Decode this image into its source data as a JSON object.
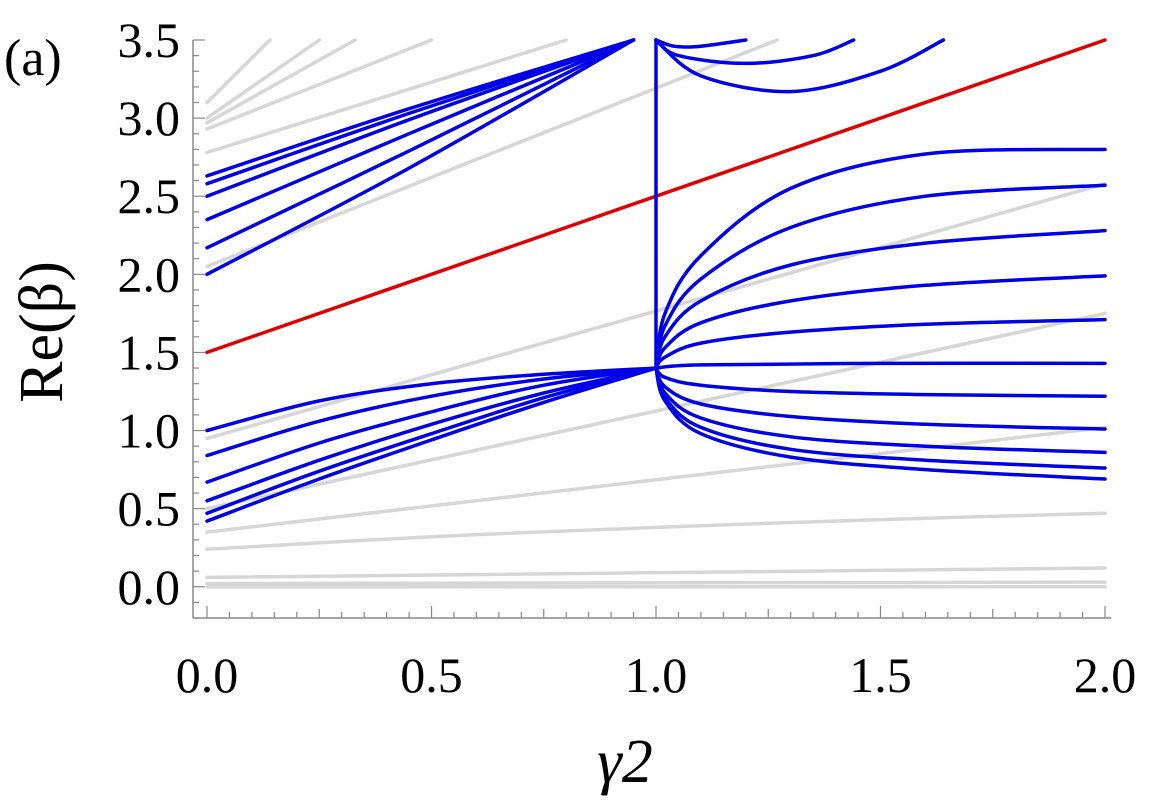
{
  "panel_label": "(a)",
  "chart_data": {
    "type": "line",
    "title": "",
    "xlabel": "γ2",
    "ylabel": "Re(β)",
    "xlim": [
      0.0,
      2.0
    ],
    "ylim": [
      -0.2,
      3.5
    ],
    "xticks": [
      "0.0",
      "0.5",
      "1.0",
      "1.5",
      "2.0"
    ],
    "xtick_values": [
      0.0,
      0.5,
      1.0,
      1.5,
      2.0
    ],
    "yticks": [
      "0.0",
      "0.5",
      "1.0",
      "1.5",
      "2.0",
      "2.5",
      "3.0",
      "3.5"
    ],
    "ytick_values": [
      0.0,
      0.5,
      1.0,
      1.5,
      2.0,
      2.5,
      3.0,
      3.5
    ],
    "grid": false,
    "legend": "none",
    "colors": {
      "gray": "#d6d6d6",
      "blue": "#0000e6",
      "red": "#dd0000"
    },
    "series": [
      {
        "color": "gray",
        "x": [
          0.0,
          2.0
        ],
        "y": [
          0.0,
          0.0
        ]
      },
      {
        "color": "gray",
        "x": [
          0.0,
          2.0
        ],
        "y": [
          0.02,
          0.03
        ]
      },
      {
        "color": "gray",
        "x": [
          0.0,
          2.0
        ],
        "y": [
          0.06,
          0.12
        ]
      },
      {
        "color": "gray",
        "x": [
          0.0,
          0.5,
          1.0,
          1.5,
          2.0
        ],
        "y": [
          0.24,
          0.32,
          0.38,
          0.43,
          0.47
        ]
      },
      {
        "color": "gray",
        "x": [
          0.0,
          2.0
        ],
        "y": [
          0.35,
          1.02
        ]
      },
      {
        "color": "gray",
        "x": [
          0.0,
          2.0
        ],
        "y": [
          0.5,
          1.75
        ]
      },
      {
        "color": "gray",
        "x": [
          0.0,
          2.0
        ],
        "y": [
          0.95,
          2.58
        ]
      },
      {
        "color": "gray",
        "x": [
          0.0,
          1.27
        ],
        "y": [
          2.05,
          3.5
        ]
      },
      {
        "color": "gray",
        "x": [
          0.0,
          0.8
        ],
        "y": [
          2.78,
          3.5
        ]
      },
      {
        "color": "gray",
        "x": [
          0.0,
          0.5
        ],
        "y": [
          2.93,
          3.5
        ]
      },
      {
        "color": "gray",
        "x": [
          0.0,
          0.33
        ],
        "y": [
          2.97,
          3.5
        ]
      },
      {
        "color": "gray",
        "x": [
          0.0,
          0.25
        ],
        "y": [
          3.0,
          3.5
        ]
      },
      {
        "color": "gray",
        "x": [
          0.0,
          0.14
        ],
        "y": [
          3.1,
          3.5
        ]
      },
      {
        "color": "red",
        "x": [
          0.0,
          2.0
        ],
        "y": [
          1.5,
          3.5
        ]
      },
      {
        "color": "blue",
        "x": [
          0.0,
          0.25,
          0.5,
          0.75,
          1.0
        ],
        "y": [
          1.0,
          1.19,
          1.3,
          1.36,
          1.4
        ]
      },
      {
        "color": "blue",
        "x": [
          0.0,
          0.25,
          0.5,
          0.75,
          1.0
        ],
        "y": [
          0.84,
          1.06,
          1.22,
          1.33,
          1.4
        ]
      },
      {
        "color": "blue",
        "x": [
          0.0,
          0.25,
          0.5,
          0.75,
          1.0
        ],
        "y": [
          0.67,
          0.92,
          1.12,
          1.29,
          1.4
        ]
      },
      {
        "color": "blue",
        "x": [
          0.0,
          0.25,
          0.5,
          0.75,
          1.0
        ],
        "y": [
          0.55,
          0.81,
          1.04,
          1.24,
          1.4
        ]
      },
      {
        "color": "blue",
        "x": [
          0.0,
          0.25,
          0.5,
          0.75,
          1.0
        ],
        "y": [
          0.47,
          0.74,
          0.98,
          1.21,
          1.4
        ]
      },
      {
        "color": "blue",
        "x": [
          0.0,
          0.25,
          0.5,
          0.75,
          1.0
        ],
        "y": [
          0.42,
          0.69,
          0.94,
          1.18,
          1.4
        ]
      },
      {
        "color": "blue",
        "x": [
          0.0,
          0.45,
          0.95
        ],
        "y": [
          2.63,
          3.06,
          3.5
        ]
      },
      {
        "color": "blue",
        "x": [
          0.0,
          0.45,
          0.95
        ],
        "y": [
          2.58,
          3.03,
          3.5
        ]
      },
      {
        "color": "blue",
        "x": [
          0.0,
          0.45,
          0.95
        ],
        "y": [
          2.5,
          2.99,
          3.5
        ]
      },
      {
        "color": "blue",
        "x": [
          0.0,
          0.45,
          0.95
        ],
        "y": [
          2.35,
          2.9,
          3.5
        ]
      },
      {
        "color": "blue",
        "x": [
          0.0,
          0.45,
          0.95
        ],
        "y": [
          2.17,
          2.79,
          3.5
        ]
      },
      {
        "color": "blue",
        "x": [
          0.0,
          0.45,
          0.95
        ],
        "y": [
          2.0,
          2.68,
          3.5
        ]
      },
      {
        "color": "blue",
        "x": [
          1.0,
          1.0
        ],
        "y": [
          1.4,
          3.5
        ]
      },
      {
        "color": "blue",
        "x": [
          1.0,
          1.02,
          1.1,
          1.3,
          1.6,
          2.0
        ],
        "y": [
          1.4,
          1.75,
          2.12,
          2.55,
          2.77,
          2.8
        ]
      },
      {
        "color": "blue",
        "x": [
          1.0,
          1.02,
          1.1,
          1.3,
          1.6,
          2.0
        ],
        "y": [
          1.4,
          1.67,
          1.97,
          2.3,
          2.5,
          2.57
        ]
      },
      {
        "color": "blue",
        "x": [
          1.0,
          1.02,
          1.1,
          1.3,
          1.6,
          2.0
        ],
        "y": [
          1.4,
          1.6,
          1.83,
          2.06,
          2.2,
          2.28
        ]
      },
      {
        "color": "blue",
        "x": [
          1.0,
          1.02,
          1.1,
          1.3,
          1.6,
          2.0
        ],
        "y": [
          1.4,
          1.53,
          1.69,
          1.83,
          1.93,
          1.99
        ]
      },
      {
        "color": "blue",
        "x": [
          1.0,
          1.02,
          1.1,
          1.3,
          1.6,
          2.0
        ],
        "y": [
          1.4,
          1.47,
          1.56,
          1.63,
          1.68,
          1.71
        ]
      },
      {
        "color": "blue",
        "x": [
          1.0,
          1.1,
          1.5,
          2.0
        ],
        "y": [
          1.4,
          1.42,
          1.43,
          1.43
        ]
      },
      {
        "color": "blue",
        "x": [
          1.0,
          1.02,
          1.1,
          1.3,
          1.6,
          2.0
        ],
        "y": [
          1.4,
          1.34,
          1.29,
          1.25,
          1.23,
          1.22
        ]
      },
      {
        "color": "blue",
        "x": [
          1.0,
          1.02,
          1.1,
          1.3,
          1.6,
          2.0
        ],
        "y": [
          1.4,
          1.28,
          1.17,
          1.09,
          1.04,
          1.01
        ]
      },
      {
        "color": "blue",
        "x": [
          1.0,
          1.02,
          1.1,
          1.3,
          1.6,
          2.0
        ],
        "y": [
          1.4,
          1.24,
          1.08,
          0.96,
          0.9,
          0.86
        ]
      },
      {
        "color": "blue",
        "x": [
          1.0,
          1.02,
          1.1,
          1.3,
          1.6,
          2.0
        ],
        "y": [
          1.4,
          1.21,
          1.02,
          0.88,
          0.81,
          0.76
        ]
      },
      {
        "color": "blue",
        "x": [
          1.0,
          1.02,
          1.1,
          1.3,
          1.6,
          2.0
        ],
        "y": [
          1.4,
          1.19,
          0.98,
          0.83,
          0.75,
          0.69
        ]
      },
      {
        "color": "blue",
        "x": [
          1.0,
          1.04,
          1.1,
          1.2
        ],
        "y": [
          3.5,
          3.46,
          3.46,
          3.5
        ]
      },
      {
        "color": "blue",
        "x": [
          1.0,
          1.05,
          1.2,
          1.35,
          1.44
        ],
        "y": [
          3.5,
          3.4,
          3.35,
          3.4,
          3.5
        ]
      },
      {
        "color": "blue",
        "x": [
          1.0,
          1.1,
          1.3,
          1.5,
          1.64
        ],
        "y": [
          3.5,
          3.27,
          3.17,
          3.3,
          3.5
        ]
      }
    ]
  }
}
